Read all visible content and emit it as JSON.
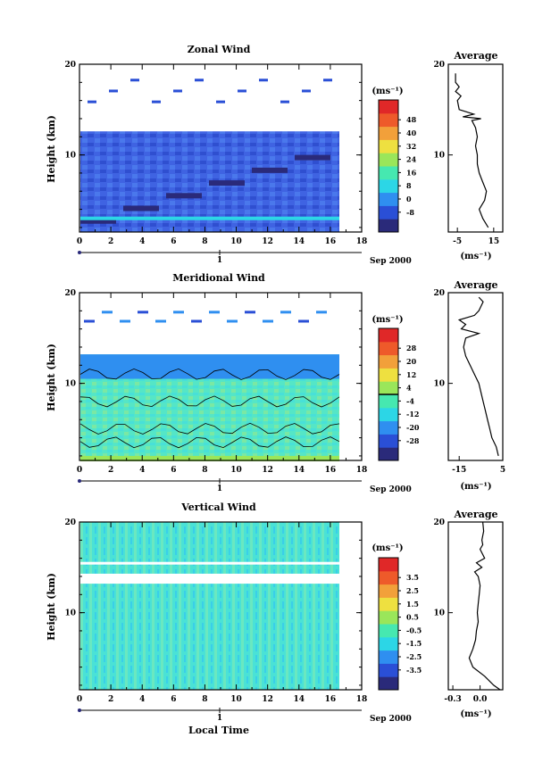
{
  "chart_data": [
    {
      "type": "heatmap",
      "title": "Zonal Wind",
      "xlabel": "",
      "ylabel": "Height (km)",
      "x_ticks": [
        "0",
        "2",
        "4",
        "6",
        "8",
        "10",
        "12",
        "14",
        "16",
        "18"
      ],
      "y_ticks": [
        "10",
        "20"
      ],
      "xlim": [
        0,
        18
      ],
      "ylim": [
        1.5,
        20
      ],
      "date_label": "Sep 2000",
      "day_marker": "1",
      "colorbar": {
        "unit": "(ms⁻¹)",
        "labels": [
          "-8",
          "0",
          "8",
          "16",
          "24",
          "32",
          "40",
          "48"
        ]
      },
      "average": {
        "title": "Average",
        "xlim": [
          -10,
          20
        ],
        "x_ticks": [
          "-5",
          "15"
        ],
        "xlabel": "(ms⁻¹)",
        "y_ticks": [
          "10",
          "20"
        ],
        "profile": [
          [
            2,
            12
          ],
          [
            3,
            9
          ],
          [
            4,
            7
          ],
          [
            5,
            10
          ],
          [
            6,
            11
          ],
          [
            7,
            9
          ],
          [
            8,
            7
          ],
          [
            9,
            6
          ],
          [
            10,
            6
          ],
          [
            11,
            5
          ],
          [
            12,
            6
          ],
          [
            13,
            5
          ],
          [
            13.8,
            3
          ],
          [
            14,
            8
          ],
          [
            14.2,
            -2
          ],
          [
            14.5,
            4
          ],
          [
            15,
            -4
          ],
          [
            16,
            -5
          ],
          [
            16.5,
            -3
          ],
          [
            17,
            -6
          ],
          [
            17.5,
            -4
          ],
          [
            18,
            -6
          ],
          [
            19,
            -6
          ]
        ]
      }
    },
    {
      "type": "heatmap",
      "title": "Meridional Wind",
      "xlabel": "",
      "ylabel": "Height (km)",
      "x_ticks": [
        "0",
        "2",
        "4",
        "6",
        "8",
        "10",
        "12",
        "14",
        "16",
        "18"
      ],
      "y_ticks": [
        "10",
        "20"
      ],
      "xlim": [
        0,
        18
      ],
      "ylim": [
        1.5,
        20
      ],
      "date_label": "Sep 2000",
      "day_marker": "1",
      "colorbar": {
        "unit": "(ms⁻¹)",
        "labels": [
          "-28",
          "-20",
          "-12",
          "-4",
          "4",
          "12",
          "20",
          "28"
        ]
      },
      "average": {
        "title": "Average",
        "xlim": [
          -20,
          5
        ],
        "x_ticks": [
          "-15",
          "5"
        ],
        "xlabel": "(ms⁻¹)",
        "y_ticks": [
          "10",
          "20"
        ],
        "profile": [
          [
            2,
            3
          ],
          [
            3,
            2
          ],
          [
            4,
            0
          ],
          [
            5,
            -1
          ],
          [
            6,
            -2
          ],
          [
            7,
            -3
          ],
          [
            8,
            -4
          ],
          [
            9,
            -5
          ],
          [
            10,
            -6
          ],
          [
            11,
            -8
          ],
          [
            12,
            -10
          ],
          [
            13,
            -12
          ],
          [
            14,
            -13
          ],
          [
            15,
            -12
          ],
          [
            15.5,
            -6
          ],
          [
            16,
            -14
          ],
          [
            16.5,
            -12
          ],
          [
            17,
            -15
          ],
          [
            17.5,
            -8
          ],
          [
            18,
            -6
          ],
          [
            18.5,
            -5
          ],
          [
            19,
            -4
          ],
          [
            19.5,
            -6
          ]
        ]
      }
    },
    {
      "type": "heatmap",
      "title": "Vertical Wind",
      "xlabel": "Local Time",
      "ylabel": "Height (km)",
      "x_ticks": [
        "0",
        "2",
        "4",
        "6",
        "8",
        "10",
        "12",
        "14",
        "16",
        "18"
      ],
      "y_ticks": [
        "10",
        "20"
      ],
      "xlim": [
        0,
        18
      ],
      "ylim": [
        1.5,
        20
      ],
      "date_label": "Sep 2000",
      "day_marker": "1",
      "colorbar": {
        "unit": "(ms⁻¹)",
        "labels": [
          "-3.5",
          "-2.5",
          "-1.5",
          "-0.5",
          "0.5",
          "1.5",
          "2.5",
          "3.5"
        ]
      },
      "average": {
        "title": "Average",
        "xlim": [
          -0.35,
          0.25
        ],
        "x_ticks": [
          "-0.3",
          "0.0"
        ],
        "xlabel": "(ms⁻¹)",
        "y_ticks": [
          "10",
          "20"
        ],
        "profile": [
          [
            1.5,
            0.22
          ],
          [
            2,
            0.15
          ],
          [
            3,
            0.05
          ],
          [
            4,
            -0.08
          ],
          [
            5,
            -0.12
          ],
          [
            6,
            -0.08
          ],
          [
            7,
            -0.05
          ],
          [
            8,
            -0.04
          ],
          [
            9,
            -0.02
          ],
          [
            10,
            -0.03
          ],
          [
            11,
            -0.02
          ],
          [
            12,
            -0.01
          ],
          [
            13,
            0.0
          ],
          [
            14,
            -0.02
          ],
          [
            14.5,
            -0.06
          ],
          [
            15,
            0.02
          ],
          [
            15.5,
            -0.04
          ],
          [
            16,
            0.05
          ],
          [
            17,
            0.0
          ],
          [
            17.5,
            0.03
          ],
          [
            18,
            0.02
          ],
          [
            19,
            0.04
          ],
          [
            20,
            0.03
          ]
        ]
      }
    }
  ],
  "colors": {
    "scale": [
      "#2a2a7a",
      "#2a4fd6",
      "#2f8ff0",
      "#2cd6e6",
      "#46e8b0",
      "#9ae65a",
      "#eee040",
      "#f2a03a",
      "#ee5a2a",
      "#e02828"
    ],
    "zonal_main": "#3a5ee0",
    "meridional_main": "#52e8c0",
    "vertical_main": "#46e4d8"
  }
}
